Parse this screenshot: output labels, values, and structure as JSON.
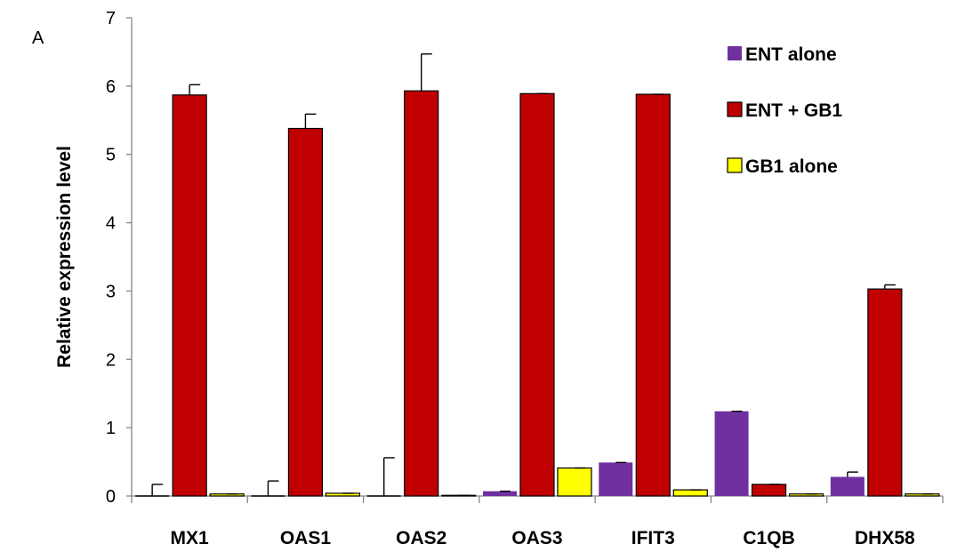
{
  "panel_label": "A",
  "colors": {
    "ENT alone": "#7030a0",
    "ENT + GB1": "#c00000",
    "GB1 alone": "#ffff00",
    "axis": "#868686",
    "outline": "#000000"
  },
  "chart_data": {
    "type": "bar",
    "title": "",
    "xlabel": "",
    "ylabel": "Relative expression level",
    "ylim": [
      0,
      7
    ],
    "yticks": [
      0,
      1,
      2,
      3,
      4,
      5,
      6,
      7
    ],
    "grid": false,
    "legend_position": "top-right",
    "categories": [
      "MX1",
      "OAS1",
      "OAS2",
      "OAS3",
      "IFIT3",
      "C1QB",
      "DHX58"
    ],
    "series": [
      {
        "name": "ENT alone",
        "values": [
          0.0,
          0.0,
          0.0,
          0.07,
          0.49,
          1.24,
          0.28
        ],
        "errors": [
          0.17,
          0.22,
          0.56,
          0.0,
          0.0,
          0.0,
          0.07
        ]
      },
      {
        "name": "ENT + GB1",
        "values": [
          5.87,
          5.38,
          5.93,
          5.89,
          5.88,
          0.17,
          3.03
        ],
        "errors": [
          0.15,
          0.21,
          0.54,
          0.0,
          0.0,
          0.0,
          0.06
        ]
      },
      {
        "name": "GB1 alone",
        "values": [
          0.03,
          0.04,
          0.01,
          0.41,
          0.09,
          0.03,
          0.03
        ],
        "errors": [
          0.0,
          0.0,
          0.0,
          0.0,
          0.0,
          0.0,
          0.0
        ]
      }
    ]
  }
}
